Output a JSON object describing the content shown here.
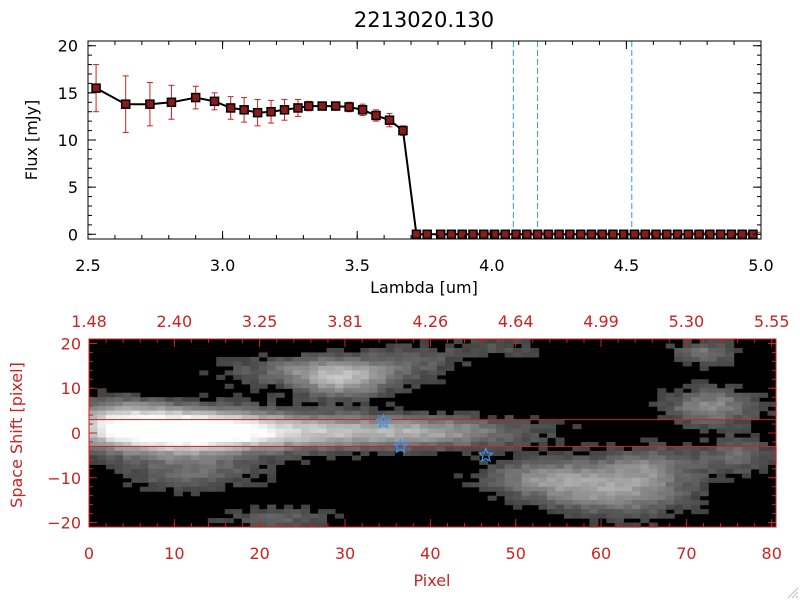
{
  "colors": {
    "axis_black": "#000000",
    "axis_red": "#cc2222",
    "error_red": "#cc2222",
    "marker_fill": "#8b1a1a",
    "dashed_blue": "#3399dd",
    "star_blue": "#3399ff",
    "image_bg": "#000000"
  },
  "chart_data": [
    {
      "type": "line",
      "title": "2213020.130",
      "xlabel": "Lambda [um]",
      "ylabel": "Flux [mJy]",
      "xlim": [
        2.5,
        5.0
      ],
      "ylim": [
        -0.5,
        20.5
      ],
      "xticks": [
        2.5,
        3.0,
        3.5,
        4.0,
        4.5,
        5.0
      ],
      "xtick_labels": [
        "2.5",
        "3.0",
        "3.5",
        "4.0",
        "4.5",
        "5.0"
      ],
      "yticks": [
        0,
        5,
        10,
        15,
        20
      ],
      "ytick_labels": [
        "0",
        "5",
        "10",
        "15",
        "20"
      ],
      "series": [
        {
          "name": "flux",
          "x": [
            2.53,
            2.64,
            2.73,
            2.81,
            2.9,
            2.97,
            3.03,
            3.08,
            3.13,
            3.18,
            3.23,
            3.28,
            3.32,
            3.37,
            3.42,
            3.47,
            3.52,
            3.57,
            3.62,
            3.67,
            3.72,
            3.76,
            3.81,
            3.85,
            3.89,
            3.93,
            3.97,
            4.01,
            4.05,
            4.09,
            4.13,
            4.17,
            4.21,
            4.25,
            4.29,
            4.33,
            4.37,
            4.41,
            4.45,
            4.49,
            4.53,
            4.57,
            4.61,
            4.65,
            4.69,
            4.73,
            4.77,
            4.81,
            4.85,
            4.89,
            4.93,
            4.97
          ],
          "y": [
            15.5,
            13.8,
            13.8,
            14.0,
            14.5,
            14.1,
            13.4,
            13.2,
            12.9,
            13.0,
            13.2,
            13.4,
            13.6,
            13.6,
            13.6,
            13.5,
            13.2,
            12.6,
            12.1,
            11.0,
            0,
            0,
            0,
            0,
            0,
            0,
            0,
            0,
            0,
            0,
            0,
            0,
            0,
            0,
            0,
            0,
            0,
            0,
            0,
            0,
            0,
            0,
            0,
            0,
            0,
            0,
            0,
            0,
            0,
            0,
            0,
            0
          ],
          "yerr": [
            2.5,
            3.0,
            2.3,
            1.8,
            1.2,
            0.9,
            1.2,
            1.3,
            1.4,
            1.2,
            1.1,
            0.9,
            0.5,
            0.4,
            0.4,
            0.5,
            0.6,
            0.6,
            0.7,
            0.5,
            0,
            0,
            0,
            0,
            0,
            0,
            0,
            0,
            0,
            0,
            0,
            0,
            0,
            0,
            0,
            0,
            0,
            0,
            0,
            0,
            0,
            0,
            0,
            0,
            0,
            0,
            0,
            0,
            0,
            0,
            0,
            0
          ]
        }
      ],
      "vlines": [
        4.08,
        4.17,
        4.52
      ],
      "grid": false
    },
    {
      "type": "heatmap",
      "xlabel": "Pixel",
      "ylabel": "Space Shift [pixel]",
      "xlim": [
        0,
        80.5
      ],
      "ylim": [
        -21,
        21
      ],
      "xticks": [
        0,
        10,
        20,
        30,
        40,
        50,
        60,
        70,
        80
      ],
      "xtick_labels": [
        "0",
        "10",
        "20",
        "30",
        "40",
        "50",
        "60",
        "70",
        "80"
      ],
      "yticks": [
        -20,
        -10,
        0,
        10,
        20
      ],
      "ytick_labels": [
        "−20",
        "−10",
        "0",
        "10",
        "20"
      ],
      "top_axis_ticks": [
        0,
        10,
        20,
        30,
        40,
        50,
        60,
        70,
        80
      ],
      "top_axis_labels": [
        "1.48",
        "2.40",
        "3.25",
        "3.81",
        "4.26",
        "4.64",
        "4.99",
        "5.30",
        "5.55"
      ],
      "hlines": [
        3,
        -3
      ],
      "blobs": [
        {
          "x": 10,
          "y": 0.5,
          "sx": 8,
          "sy": 3.5,
          "v": 1.0
        },
        {
          "x": 22,
          "y": 0.3,
          "sx": 14,
          "sy": 2.8,
          "v": 0.55
        },
        {
          "x": 40,
          "y": 0.2,
          "sx": 9,
          "sy": 2.5,
          "v": 0.35
        },
        {
          "x": 3,
          "y": 4,
          "sx": 4,
          "sy": 3,
          "v": 0.35
        },
        {
          "x": 12,
          "y": -9,
          "sx": 6,
          "sy": 3,
          "v": 0.3
        },
        {
          "x": 30,
          "y": 12,
          "sx": 4,
          "sy": 3,
          "v": 0.55
        },
        {
          "x": 24,
          "y": 14,
          "sx": 6,
          "sy": 2.5,
          "v": 0.3
        },
        {
          "x": 38,
          "y": 16,
          "sx": 4,
          "sy": 3,
          "v": 0.25
        },
        {
          "x": 48,
          "y": 19,
          "sx": 4,
          "sy": 2,
          "v": 0.2
        },
        {
          "x": 53,
          "y": -10,
          "sx": 5,
          "sy": 3,
          "v": 0.4
        },
        {
          "x": 62,
          "y": -13,
          "sx": 6,
          "sy": 4,
          "v": 0.5
        },
        {
          "x": 66,
          "y": -7,
          "sx": 4,
          "sy": 3,
          "v": 0.3
        },
        {
          "x": 73,
          "y": 6,
          "sx": 4,
          "sy": 3,
          "v": 0.45
        },
        {
          "x": 72,
          "y": 18,
          "sx": 3,
          "sy": 2,
          "v": 0.35
        },
        {
          "x": 22,
          "y": -19,
          "sx": 5,
          "sy": 2,
          "v": 0.25
        },
        {
          "x": 76,
          "y": -5,
          "sx": 3,
          "sy": 3,
          "v": 0.3
        }
      ],
      "stars": [
        {
          "x": 34.5,
          "y": 2.5
        },
        {
          "x": 36.5,
          "y": -3
        },
        {
          "x": 46.5,
          "y": -5
        }
      ]
    }
  ]
}
